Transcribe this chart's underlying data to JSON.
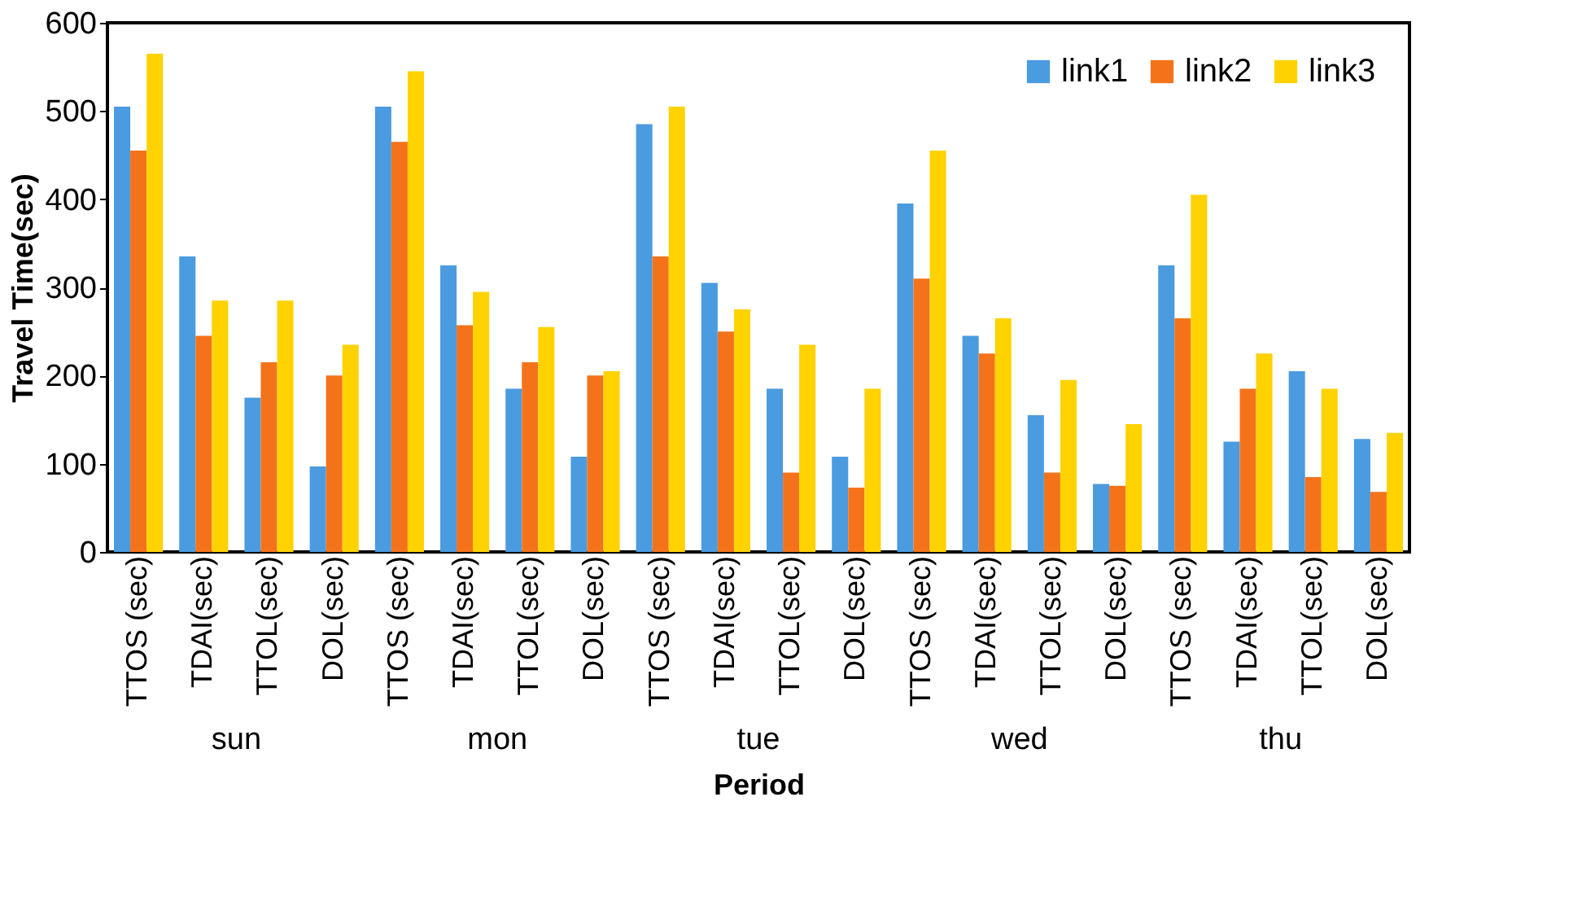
{
  "chart_data": {
    "type": "bar",
    "xlabel": "Period",
    "ylabel": "Travel Time(sec)",
    "categories": [
      "TTOS (sec)",
      "TDAI(sec)",
      "TTOL(sec)",
      "DOL(sec)",
      "TTOS (sec)",
      "TDAI(sec)",
      "TTOL(sec)",
      "DOL(sec)",
      "TTOS (sec)",
      "TDAI(sec)",
      "TTOL(sec)",
      "DOL(sec)",
      "TTOS (sec)",
      "TDAI(sec)",
      "TTOL(sec)",
      "DOL(sec)",
      "TTOS (sec)",
      "TDAI(sec)",
      "TTOL(sec)",
      "DOL(sec)"
    ],
    "series": [
      {
        "name": "link1",
        "color": "#4a9be0",
        "values": [
          505,
          335,
          175,
          97,
          505,
          325,
          185,
          108,
          485,
          305,
          185,
          108,
          395,
          245,
          155,
          77,
          325,
          125,
          205,
          128
        ]
      },
      {
        "name": "link2",
        "color": "#f4731a",
        "values": [
          455,
          245,
          215,
          200,
          465,
          257,
          215,
          200,
          335,
          250,
          90,
          73,
          310,
          225,
          90,
          75,
          265,
          185,
          85,
          68
        ]
      },
      {
        "name": "link3",
        "color": "#ffd200",
        "values": [
          565,
          285,
          285,
          235,
          545,
          295,
          255,
          205,
          505,
          275,
          235,
          185,
          455,
          265,
          195,
          145,
          405,
          225,
          185,
          135
        ]
      }
    ],
    "annotations": [
      "sun",
      "mon",
      "tue",
      "wed",
      "thu"
    ],
    "ylim": [
      0,
      600
    ],
    "yticks": [
      0,
      100,
      200,
      300,
      400,
      500,
      600
    ],
    "grid": false,
    "legend": "top right"
  }
}
